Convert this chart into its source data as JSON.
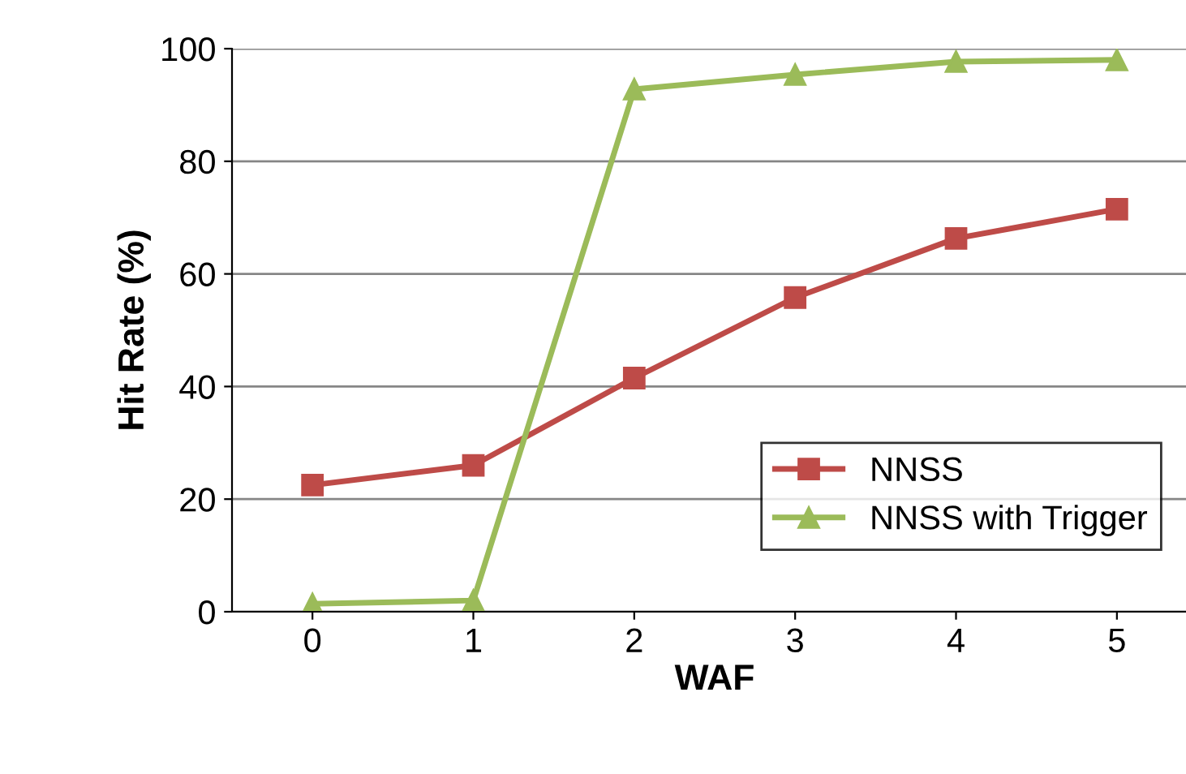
{
  "chart_data": {
    "type": "line",
    "xlabel": "WAF",
    "ylabel": "Hit Rate (%)",
    "categories": [
      "0",
      "1",
      "2",
      "3",
      "4",
      "5"
    ],
    "series": [
      {
        "name": "NNSS",
        "color": "#be4b48",
        "marker": "square",
        "values": [
          22.5,
          26,
          41.5,
          55.8,
          66.3,
          71.5
        ]
      },
      {
        "name": "NNSS with Trigger",
        "color": "#9bbb59",
        "marker": "triangle",
        "values": [
          1.4,
          2,
          92.8,
          95.4,
          97.7,
          98
        ]
      }
    ],
    "ylim": [
      0,
      100
    ],
    "yticks": [
      0,
      20,
      40,
      60,
      80,
      100
    ],
    "grid": "y",
    "legend": "bottom right"
  }
}
